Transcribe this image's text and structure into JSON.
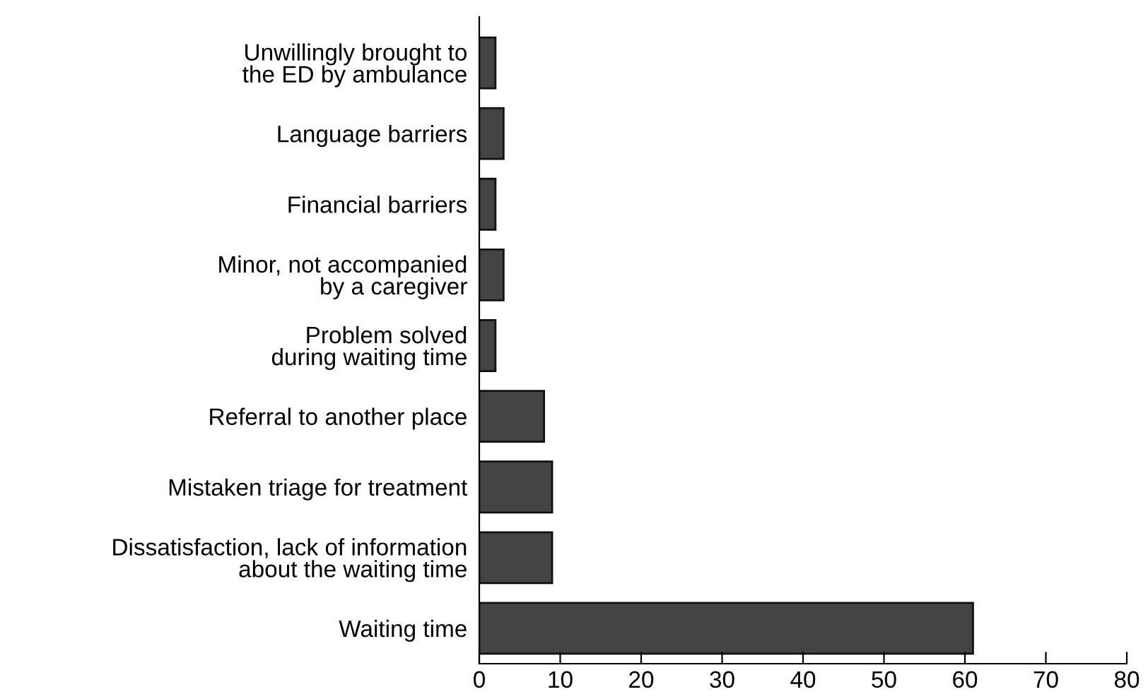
{
  "chart_data": {
    "type": "bar",
    "orientation": "horizontal",
    "categories": [
      "Unwillingly brought to\nthe ED by ambulance",
      "Language barriers",
      "Financial barriers",
      "Minor, not accompanied\nby a caregiver",
      "Problem solved\nduring waiting time",
      "Referral to another place",
      "Mistaken triage for treatment",
      "Dissatisfaction, lack of information\nabout the waiting time",
      "Waiting time"
    ],
    "values": [
      2,
      3,
      2,
      3,
      2,
      8,
      9,
      9,
      61
    ],
    "color": "#434343",
    "xlim": [
      0,
      80
    ],
    "xticks": [
      0,
      10,
      20,
      30,
      40,
      50,
      60,
      70,
      80
    ],
    "grid": false
  }
}
